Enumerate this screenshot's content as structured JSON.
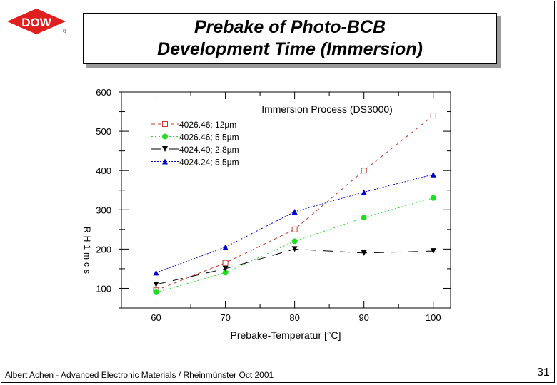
{
  "slide": {
    "title_lines": [
      "Prebake of Photo-BCB",
      "Development Time (Immersion)"
    ],
    "logo_text": "DOW",
    "footer": "Albert Achen - Advanced Electronic Materials / Rheinmünster Oct 2001",
    "page_number": "31"
  },
  "colors": {
    "red": "#c0392b",
    "green": "#22dd22",
    "black": "#000000",
    "blue": "#0000cc",
    "logo": "#e0201e"
  },
  "chart_data": {
    "type": "line",
    "title": "Immersion Process (DS3000)",
    "xlabel": "Prebake-Temperatur [°C]",
    "ylabel": "R H 1 m c s",
    "x": [
      60,
      70,
      80,
      90,
      100
    ],
    "xticks": [
      "60",
      "70",
      "80",
      "90",
      "100"
    ],
    "yticks": [
      "100",
      "200",
      "300",
      "400",
      "500",
      "600"
    ],
    "xlim": [
      55,
      102.5
    ],
    "ylim": [
      50,
      600
    ],
    "series": [
      {
        "name": "4026.46; 12µm",
        "values": [
          95,
          165,
          250,
          400,
          540
        ],
        "marker": "square-open",
        "dash": "5,4",
        "color": "#c0392b"
      },
      {
        "name": "4026.46; 5.5µm",
        "values": [
          90,
          140,
          220,
          280,
          330
        ],
        "marker": "circle",
        "dash": "2,3",
        "color": "#22dd22"
      },
      {
        "name": "4024.40; 2.8µm",
        "values": [
          110,
          150,
          200,
          190,
          195
        ],
        "marker": "triangle-down",
        "dash": "14,10",
        "color": "#000000"
      },
      {
        "name": "4024.24; 5.5µm",
        "values": [
          140,
          205,
          295,
          345,
          390
        ],
        "marker": "triangle-up",
        "dash": "2,2",
        "color": "#0000cc"
      }
    ]
  }
}
